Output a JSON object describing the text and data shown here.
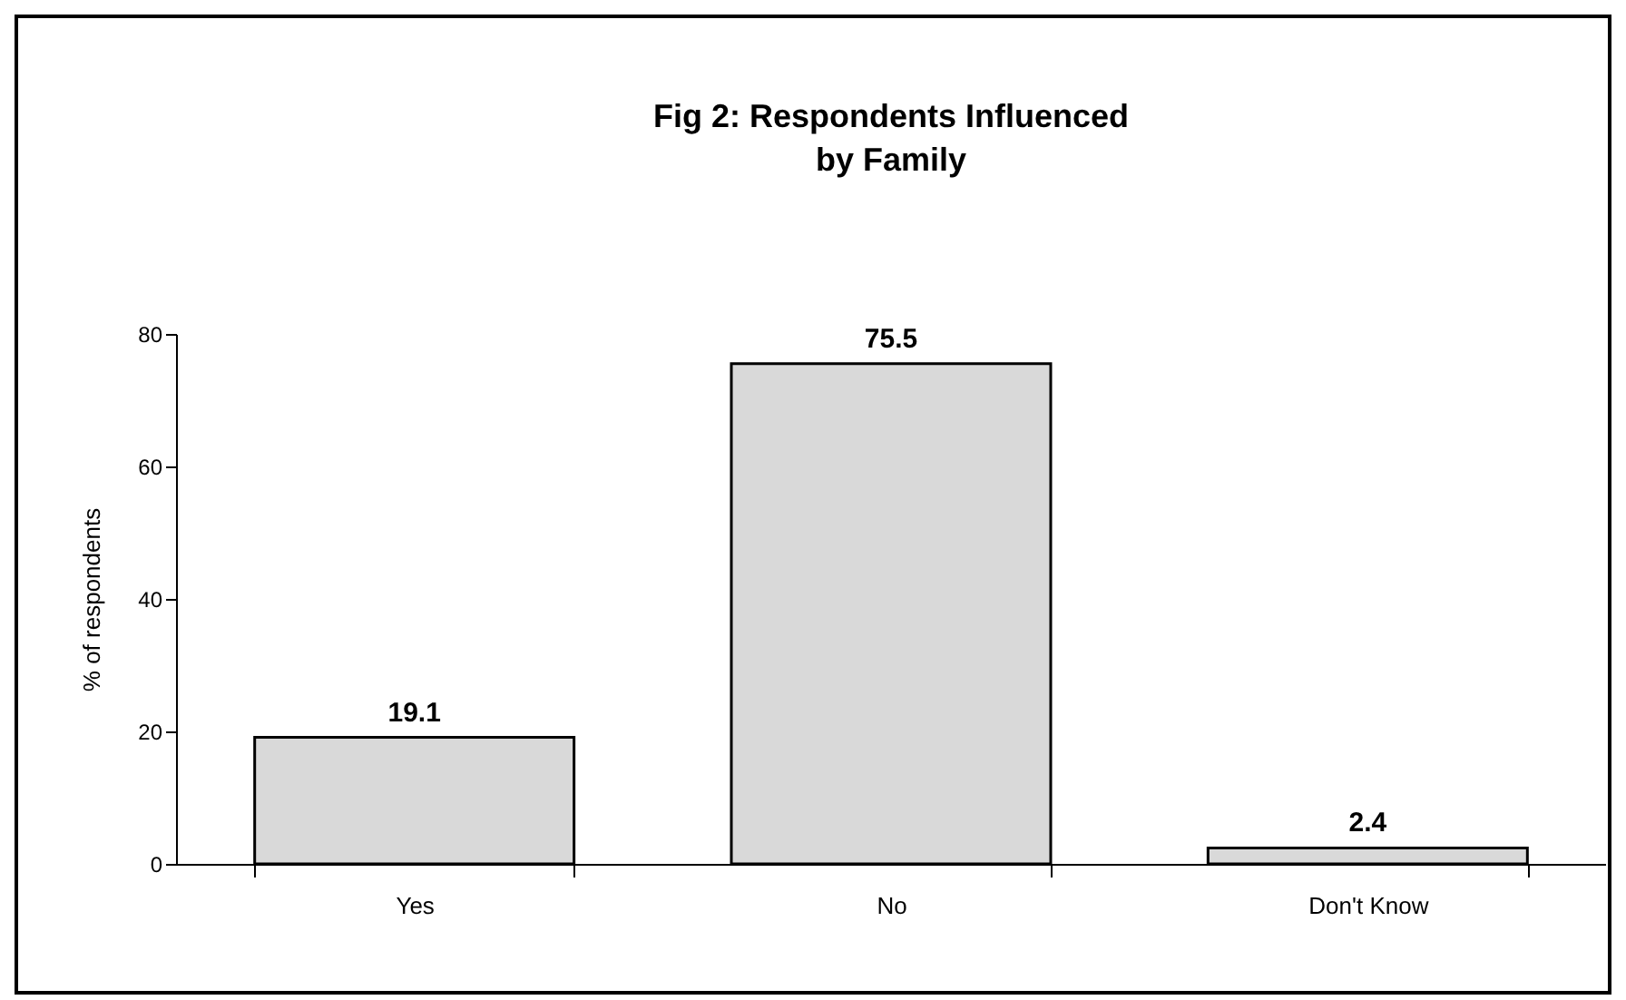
{
  "chart_data": {
    "type": "bar",
    "title": "Fig 2:  Respondents Influenced\nby Family",
    "ylabel": "% of respondents",
    "categories": [
      "Yes",
      "No",
      "Don't Know"
    ],
    "values": [
      19.1,
      75.5,
      2.4
    ],
    "color": "#d9d9d9",
    "ylim": [
      0,
      80
    ],
    "yticks": [
      0,
      20,
      40,
      60,
      80
    ],
    "grid": false,
    "data_labels": true
  }
}
